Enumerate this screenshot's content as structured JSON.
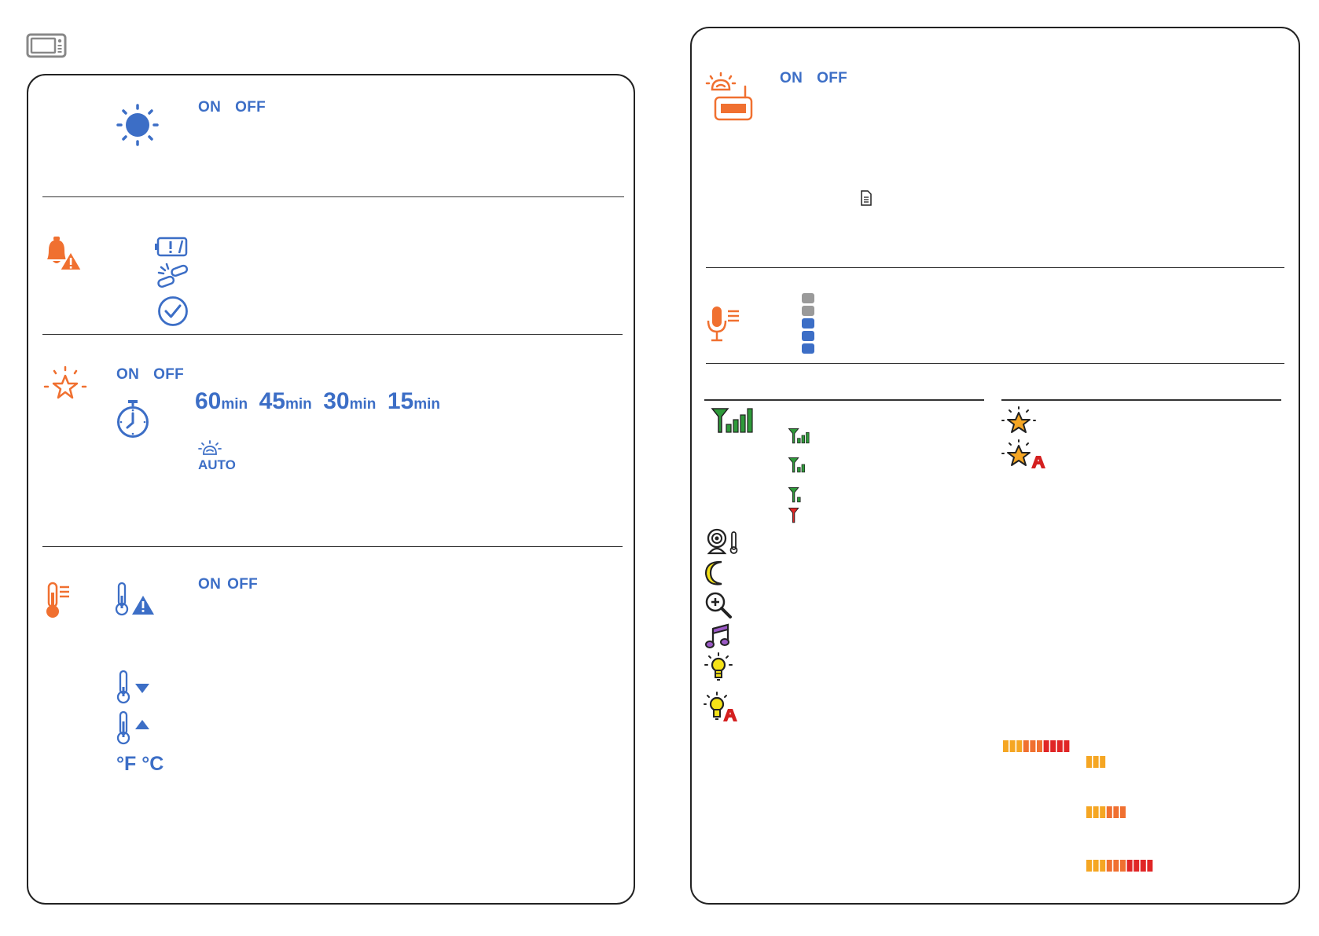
{
  "panels": {
    "brightness": {
      "on_label": "ON",
      "off_label": "OFF"
    },
    "alerts": {},
    "night_light": {
      "on_label": "ON",
      "off_label": "OFF",
      "timer_options": [
        {
          "value": "60",
          "unit": "min"
        },
        {
          "value": "45",
          "unit": "min"
        },
        {
          "value": "30",
          "unit": "min"
        },
        {
          "value": "15",
          "unit": "min"
        }
      ],
      "auto_label": "AUTO"
    },
    "temperature": {
      "on_label": "ON",
      "off_label": "OFF",
      "unit_label": "°F °C"
    },
    "auto_wake": {
      "on_label": "ON",
      "off_label": "OFF"
    },
    "sensitivity": {
      "levels": 5,
      "active_levels": 3
    }
  },
  "colors": {
    "blue": "#3C6EC6",
    "orange": "#F07030",
    "green": "#2E9A3A",
    "red": "#E02626",
    "yellow": "#F5C518",
    "gray": "#9A9A9A",
    "purple": "#7A3EA0"
  },
  "icons": [
    "monitor-icon",
    "sun-icon",
    "bell-warning-icon",
    "battery-warning-icon",
    "link-broken-icon",
    "check-circle-icon",
    "star-rays-icon",
    "stopwatch-icon",
    "auto-icon",
    "thermometer-icon",
    "thermometer-warning-icon",
    "thermometer-down-icon",
    "thermometer-up-icon",
    "camera-alarm-icon",
    "document-icon",
    "microphone-icon",
    "signal-icon",
    "camera-1-icon",
    "moon-icon",
    "zoom-icon",
    "music-icon",
    "bulb-icon",
    "bulb-auto-icon",
    "star-icon",
    "star-auto-icon",
    "volume-bar-icon"
  ],
  "signal_levels": [
    4,
    3,
    2,
    1,
    0
  ],
  "volume_bars": [
    {
      "filled": 10,
      "total": 10
    },
    {
      "filled": 3,
      "total": 10
    },
    {
      "filled": 6,
      "total": 10
    },
    {
      "filled": 10,
      "total": 10
    }
  ]
}
